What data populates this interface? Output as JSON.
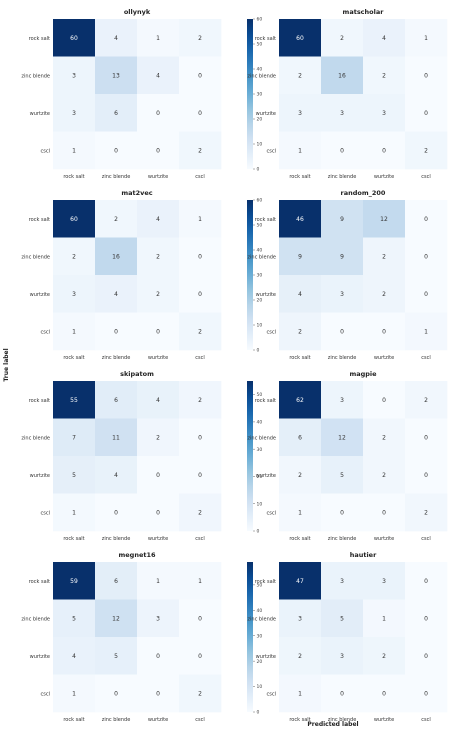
{
  "figure": {
    "xlabel": "Predicted label",
    "ylabel": "True label"
  },
  "chart_data": [
    {
      "type": "heatmap",
      "title": "ollynyk",
      "categories": [
        "rock salt",
        "zinc blende",
        "wurtzite",
        "cscl"
      ],
      "matrix": [
        [
          60,
          4,
          1,
          2
        ],
        [
          3,
          13,
          4,
          0
        ],
        [
          3,
          6,
          0,
          0
        ],
        [
          1,
          0,
          0,
          2
        ]
      ],
      "colorbar_ticks": [
        0,
        10,
        20,
        30,
        40,
        50,
        60
      ],
      "vmax": 60
    },
    {
      "type": "heatmap",
      "title": "matscholar",
      "categories": [
        "rock salt",
        "zinc blende",
        "wurtzite",
        "cscl"
      ],
      "matrix": [
        [
          60,
          2,
          4,
          1
        ],
        [
          2,
          16,
          2,
          0
        ],
        [
          3,
          3,
          3,
          0
        ],
        [
          1,
          0,
          0,
          2
        ]
      ],
      "colorbar_ticks": [
        0,
        10,
        20,
        30,
        40,
        50,
        60
      ],
      "vmax": 60
    },
    {
      "type": "heatmap",
      "title": "mat2vec",
      "categories": [
        "rock salt",
        "zinc blende",
        "wurtzite",
        "cscl"
      ],
      "matrix": [
        [
          60,
          2,
          4,
          1
        ],
        [
          2,
          16,
          2,
          0
        ],
        [
          3,
          4,
          2,
          0
        ],
        [
          1,
          0,
          0,
          2
        ]
      ],
      "colorbar_ticks": [
        0,
        10,
        20,
        30,
        40,
        50,
        60
      ],
      "vmax": 60
    },
    {
      "type": "heatmap",
      "title": "random_200",
      "categories": [
        "rock salt",
        "zinc blende",
        "wurtzite",
        "cscl"
      ],
      "matrix": [
        [
          46,
          9,
          12,
          0
        ],
        [
          9,
          9,
          2,
          0
        ],
        [
          4,
          3,
          2,
          0
        ],
        [
          2,
          0,
          0,
          1
        ]
      ],
      "colorbar_ticks": [
        0,
        10,
        20,
        30,
        40
      ],
      "vmax": 46
    },
    {
      "type": "heatmap",
      "title": "skipatom",
      "categories": [
        "rock salt",
        "zinc blende",
        "wurtzite",
        "cscl"
      ],
      "matrix": [
        [
          55,
          6,
          4,
          2
        ],
        [
          7,
          11,
          2,
          0
        ],
        [
          5,
          4,
          0,
          0
        ],
        [
          1,
          0,
          0,
          2
        ]
      ],
      "colorbar_ticks": [
        0,
        10,
        20,
        30,
        40,
        50
      ],
      "vmax": 55
    },
    {
      "type": "heatmap",
      "title": "magpie",
      "categories": [
        "rock salt",
        "zinc blende",
        "wurtzite",
        "cscl"
      ],
      "matrix": [
        [
          62,
          3,
          0,
          2
        ],
        [
          6,
          12,
          2,
          0
        ],
        [
          2,
          5,
          2,
          0
        ],
        [
          1,
          0,
          0,
          2
        ]
      ],
      "colorbar_ticks": [
        0,
        10,
        20,
        30,
        40,
        50,
        60
      ],
      "vmax": 62
    },
    {
      "type": "heatmap",
      "title": "megnet16",
      "categories": [
        "rock salt",
        "zinc blende",
        "wurtzite",
        "cscl"
      ],
      "matrix": [
        [
          59,
          6,
          1,
          1
        ],
        [
          5,
          12,
          3,
          0
        ],
        [
          4,
          5,
          0,
          0
        ],
        [
          1,
          0,
          0,
          2
        ]
      ],
      "colorbar_ticks": [
        0,
        10,
        20,
        30,
        40,
        50
      ],
      "vmax": 59
    },
    {
      "type": "heatmap",
      "title": "hautier",
      "categories": [
        "rock salt",
        "zinc blende",
        "wurtzite",
        "cscl"
      ],
      "matrix": [
        [
          47,
          3,
          3,
          0
        ],
        [
          3,
          5,
          1,
          0
        ],
        [
          2,
          3,
          2,
          0
        ],
        [
          1,
          0,
          0,
          0
        ]
      ],
      "colorbar_ticks": [
        0,
        10,
        20,
        30,
        40
      ],
      "vmax": 47
    }
  ]
}
